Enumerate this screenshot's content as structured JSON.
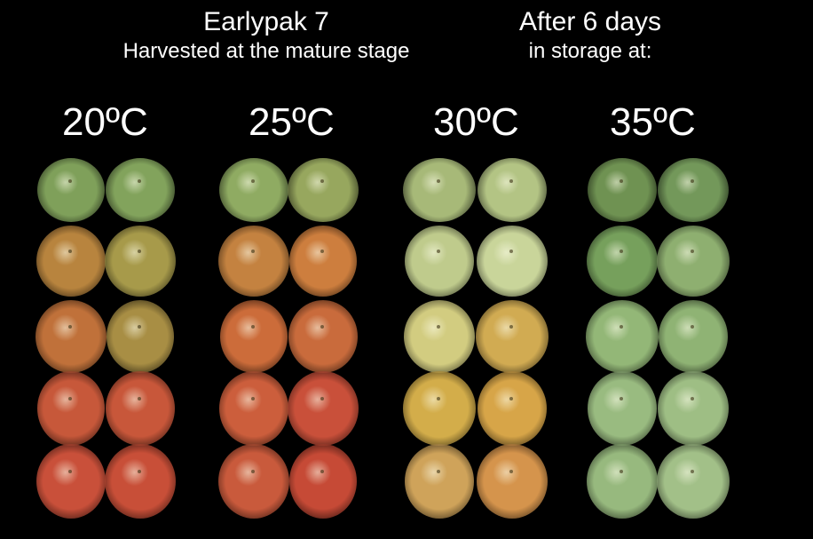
{
  "header": {
    "variety": "Earlypak 7",
    "harvest": "Harvested at the mature stage",
    "storage_title": "After 6 days",
    "storage_sub": "in storage at:"
  },
  "temperatures": [
    "20ºC",
    "25ºC",
    "30ºC",
    "35ºC"
  ],
  "colors": {
    "background": "#000000",
    "text": "#ffffff",
    "fruit_20": [
      [
        "#7fa05a",
        "#82a35c"
      ],
      [
        "#b8843e",
        "#a79a4a"
      ],
      [
        "#c0713a",
        "#a88e44"
      ],
      [
        "#c7583a",
        "#c8573a"
      ],
      [
        "#c9503a",
        "#c84f38"
      ]
    ],
    "fruit_25": [
      [
        "#8fab62",
        "#97a75e"
      ],
      [
        "#c48240",
        "#cd7e3e"
      ],
      [
        "#cc6c3a",
        "#c96b3c"
      ],
      [
        "#cc5e3c",
        "#c9503a"
      ],
      [
        "#c95a3c",
        "#c64a36"
      ]
    ],
    "fruit_30": [
      [
        "#a7b978",
        "#b3c484"
      ],
      [
        "#bfcb8c",
        "#c9d59a"
      ],
      [
        "#d2cc80",
        "#d1ab52"
      ],
      [
        "#d3ad4a",
        "#d7a548"
      ],
      [
        "#cfa35a",
        "#d5944c"
      ]
    ],
    "fruit_35": [
      [
        "#6f9252",
        "#73985a"
      ],
      [
        "#76a05c",
        "#8eaf70"
      ],
      [
        "#93b777",
        "#8fb374"
      ],
      [
        "#99bb80",
        "#9ebe84"
      ],
      [
        "#97b97e",
        "#a2c088"
      ]
    ]
  }
}
